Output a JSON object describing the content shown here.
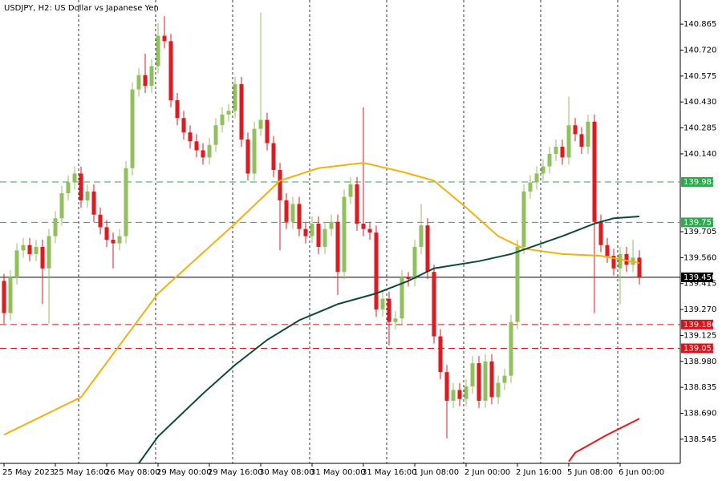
{
  "chart_data": {
    "type": "candlestick",
    "title": "USDJPY, H2:  US Dollar vs Japanese Yen",
    "categories": [
      "25 May 2023",
      null,
      null,
      null,
      null,
      null,
      null,
      null,
      "25 May 16:00",
      null,
      null,
      null,
      null,
      null,
      null,
      null,
      "26 May 08:00",
      null,
      null,
      null,
      null,
      null,
      null,
      null,
      "29 May 00:00",
      null,
      null,
      null,
      null,
      null,
      null,
      null,
      "29 May 16:00",
      null,
      null,
      null,
      null,
      null,
      null,
      null,
      "30 May 08:00",
      null,
      null,
      null,
      null,
      null,
      null,
      null,
      "31 May 00:00",
      null,
      null,
      null,
      null,
      null,
      null,
      null,
      "31 May 16:00",
      null,
      null,
      null,
      null,
      null,
      null,
      null,
      "1 Jun 08:00",
      null,
      null,
      null,
      null,
      null,
      null,
      null,
      "2 Jun 00:00",
      null,
      null,
      null,
      null,
      null,
      null,
      null,
      "2 Jun 16:00",
      null,
      null,
      null,
      null,
      null,
      null,
      null,
      "5 Jun 08:00",
      null,
      null,
      null,
      null,
      null,
      null,
      null,
      "6 Jun 00:00",
      null,
      null,
      null
    ],
    "series": {
      "up_color": "#8fc25a",
      "down_color": "#e8161d",
      "open": [
        139.43,
        139.25,
        139.45,
        139.6,
        139.63,
        139.58,
        139.62,
        139.5,
        139.68,
        139.78,
        139.92,
        139.98,
        140.03,
        139.88,
        139.93,
        139.8,
        139.73,
        139.66,
        139.64,
        139.68,
        140.06,
        140.5,
        140.58,
        140.52,
        140.63,
        140.8,
        140.77,
        140.44,
        140.34,
        140.26,
        140.21,
        140.16,
        140.12,
        140.19,
        140.3,
        140.36,
        140.38,
        140.53,
        140.22,
        140.03,
        140.28,
        140.33,
        140.2,
        140.05,
        139.88,
        139.76,
        139.86,
        139.72,
        139.68,
        139.75,
        139.62,
        139.72,
        139.76,
        139.48,
        139.9,
        139.97,
        139.75,
        139.72,
        139.7,
        139.27,
        139.33,
        139.2,
        139.22,
        139.45,
        139.44,
        139.62,
        139.74,
        139.48,
        139.12,
        138.92,
        138.76,
        138.82,
        138.77,
        138.84,
        138.97,
        138.76,
        138.98,
        138.78,
        138.86,
        138.9,
        139.2,
        139.62,
        139.93,
        139.98,
        140.03,
        140.07,
        140.14,
        140.18,
        140.12,
        140.3,
        140.25,
        140.18,
        140.32,
        139.76,
        139.63,
        139.57,
        139.5,
        139.58,
        139.52,
        139.56
      ],
      "high": [
        139.47,
        139.49,
        139.64,
        139.67,
        139.67,
        139.66,
        139.66,
        139.72,
        139.82,
        139.96,
        140.02,
        140.07,
        140.07,
        139.97,
        139.97,
        139.84,
        139.77,
        139.7,
        139.72,
        140.1,
        140.54,
        140.62,
        140.7,
        140.67,
        140.87,
        140.91,
        140.81,
        140.48,
        140.38,
        140.3,
        140.25,
        140.2,
        140.23,
        140.34,
        140.4,
        140.42,
        140.57,
        140.57,
        140.26,
        140.32,
        140.93,
        140.37,
        140.24,
        140.09,
        139.92,
        139.9,
        139.9,
        139.76,
        139.79,
        139.79,
        139.76,
        139.8,
        139.8,
        139.94,
        140.01,
        140.01,
        140.4,
        139.76,
        139.74,
        139.37,
        139.37,
        139.26,
        139.49,
        139.48,
        139.66,
        139.86,
        139.78,
        139.52,
        139.16,
        138.96,
        138.86,
        138.86,
        138.88,
        139.01,
        139.01,
        139.02,
        139.02,
        138.9,
        138.94,
        139.24,
        139.66,
        139.97,
        140.02,
        140.07,
        140.11,
        140.18,
        140.22,
        140.22,
        140.46,
        140.34,
        140.29,
        140.36,
        140.36,
        139.8,
        139.67,
        139.61,
        139.62,
        139.62,
        139.66,
        139.6
      ],
      "low": [
        139.19,
        139.21,
        139.41,
        139.56,
        139.54,
        139.54,
        139.3,
        139.19,
        139.64,
        139.74,
        139.88,
        139.94,
        139.84,
        139.84,
        139.76,
        139.69,
        139.62,
        139.5,
        139.6,
        139.64,
        140.02,
        140.46,
        140.48,
        140.48,
        140.59,
        140.73,
        140.4,
        140.3,
        140.22,
        140.17,
        140.12,
        140.08,
        140.08,
        140.15,
        140.26,
        140.32,
        140.34,
        140.18,
        139.99,
        139.99,
        140.24,
        140.16,
        140.01,
        139.6,
        139.72,
        139.72,
        139.68,
        139.64,
        139.64,
        139.58,
        139.58,
        139.68,
        139.35,
        139.44,
        139.86,
        139.71,
        139.68,
        139.66,
        139.23,
        139.23,
        139.07,
        139.16,
        139.18,
        139.4,
        139.4,
        139.58,
        139.44,
        139.08,
        138.88,
        138.55,
        138.72,
        138.73,
        138.73,
        138.8,
        138.72,
        138.72,
        138.74,
        138.74,
        138.82,
        138.86,
        139.16,
        139.58,
        139.89,
        139.94,
        139.99,
        140.03,
        140.1,
        140.08,
        140.08,
        140.21,
        140.14,
        140.14,
        139.25,
        139.59,
        139.53,
        139.46,
        139.3,
        139.48,
        139.48,
        139.41
      ],
      "close": [
        139.25,
        139.45,
        139.6,
        139.63,
        139.58,
        139.62,
        139.5,
        139.68,
        139.78,
        139.92,
        139.98,
        140.03,
        139.88,
        139.93,
        139.8,
        139.73,
        139.66,
        139.64,
        139.68,
        140.06,
        140.5,
        140.58,
        140.52,
        140.63,
        140.8,
        140.77,
        140.44,
        140.34,
        140.26,
        140.21,
        140.16,
        140.12,
        140.19,
        140.3,
        140.36,
        140.38,
        140.53,
        140.22,
        140.03,
        140.28,
        140.33,
        140.2,
        140.05,
        139.88,
        139.76,
        139.86,
        139.72,
        139.68,
        139.75,
        139.62,
        139.72,
        139.76,
        139.48,
        139.9,
        139.97,
        139.75,
        139.72,
        139.7,
        139.27,
        139.33,
        139.2,
        139.22,
        139.45,
        139.44,
        139.62,
        139.74,
        139.48,
        139.12,
        138.92,
        138.76,
        138.82,
        138.77,
        138.84,
        138.97,
        138.76,
        138.98,
        138.78,
        138.86,
        138.9,
        139.2,
        139.62,
        139.93,
        139.98,
        140.03,
        140.07,
        140.14,
        140.18,
        140.12,
        140.3,
        140.25,
        140.18,
        140.32,
        139.76,
        139.63,
        139.57,
        139.5,
        139.58,
        139.52,
        139.56,
        139.45
      ]
    },
    "moving_averages": [
      {
        "color": "#f2b10c",
        "x": [
          0,
          12,
          24,
          36,
          43,
          49,
          56,
          62,
          67,
          72,
          77,
          81,
          87,
          93,
          99
        ],
        "values": [
          138.57,
          138.78,
          139.36,
          139.75,
          139.99,
          140.06,
          140.09,
          140.04,
          139.99,
          139.84,
          139.68,
          139.61,
          139.58,
          139.57,
          139.53
        ]
      },
      {
        "color": "#0e4a3a",
        "x": [
          21,
          24,
          31,
          36,
          41,
          46,
          52,
          58,
          63,
          67,
          74,
          79,
          87,
          92,
          95,
          99
        ],
        "values": [
          138.41,
          138.56,
          138.8,
          138.96,
          139.1,
          139.21,
          139.3,
          139.36,
          139.43,
          139.5,
          139.54,
          139.58,
          139.68,
          139.75,
          139.78,
          139.79
        ]
      },
      {
        "color": "#e3191c",
        "x": [
          88,
          89,
          94,
          99
        ],
        "values": [
          138.42,
          138.47,
          138.57,
          138.66
        ]
      }
    ],
    "levels": [
      {
        "value": 139.983,
        "color": "#2fa84f"
      },
      {
        "value": 139.757,
        "color": "#2fa84f"
      },
      {
        "value": 139.186,
        "color": "#d9141c"
      },
      {
        "value": 139.053,
        "color": "#d9141c"
      }
    ],
    "current_price": {
      "value": 139.45,
      "label": "139.450",
      "color": "#000000"
    },
    "ylim": [
      138.41,
      141.0
    ],
    "yticks": [
      140.865,
      {
        "value": 140.72,
        "label": "140.720"
      },
      140.575,
      {
        "value": 140.43,
        "label": "140.430"
      },
      140.285,
      {
        "value": 140.14,
        "label": "140.140"
      },
      139.705,
      {
        "value": 139.56,
        "label": "139.560"
      },
      139.415,
      {
        "value": 139.27,
        "label": "139.270"
      },
      139.125,
      {
        "value": 138.98,
        "label": "138.980"
      },
      138.835,
      {
        "value": 138.69,
        "label": "138.690"
      },
      138.545
    ]
  }
}
